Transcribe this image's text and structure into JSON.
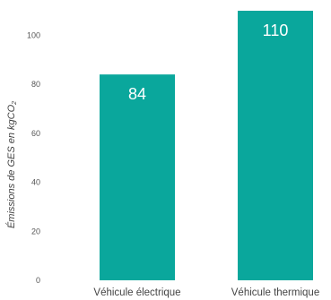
{
  "chart_data": {
    "type": "bar",
    "categories": [
      "Véhicule électrique",
      "Véhicule thermique"
    ],
    "values": [
      84,
      110
    ],
    "data_labels": [
      "84",
      "110"
    ],
    "ylabel_main": "Émissions de GES en kgCO",
    "ylabel_sub": "2",
    "ylim": [
      0,
      110
    ],
    "yticks": [
      0,
      20,
      40,
      60,
      80,
      100
    ],
    "grid": false,
    "legend": "none",
    "bar_color": "#0aa79c"
  }
}
